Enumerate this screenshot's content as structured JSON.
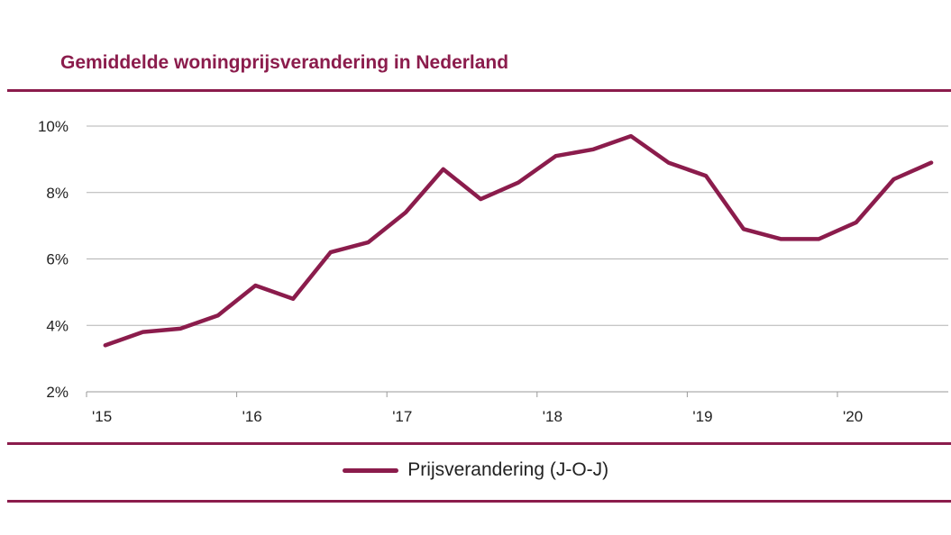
{
  "chart_data": {
    "type": "line",
    "title": "Gemiddelde woningprijsverandering in Nederland",
    "xlabel": "",
    "ylabel": "",
    "x_tick_labels": [
      "'15",
      "'16",
      "'17",
      "'18",
      "'19",
      "'20"
    ],
    "y_tick_labels": [
      "2%",
      "4%",
      "6%",
      "8%",
      "10%"
    ],
    "y_ticks": [
      2,
      4,
      6,
      8,
      10
    ],
    "ylim": [
      2,
      10
    ],
    "xlim": [
      2015,
      2021
    ],
    "grid": "horizontal",
    "legend_position": "bottom-center",
    "series": [
      {
        "name": "Prijsverandering (J-O-J)",
        "color": "#8b1c4c",
        "x": [
          2015.125,
          2015.375,
          2015.625,
          2015.875,
          2016.125,
          2016.375,
          2016.625,
          2016.875,
          2017.125,
          2017.375,
          2017.625,
          2017.875,
          2018.125,
          2018.375,
          2018.625,
          2018.875,
          2019.125,
          2019.375,
          2019.625,
          2019.875,
          2020.125,
          2020.375,
          2020.625
        ],
        "y": [
          3.4,
          3.8,
          3.9,
          4.3,
          5.2,
          4.8,
          6.2,
          6.5,
          7.4,
          8.7,
          7.8,
          8.3,
          9.1,
          9.3,
          9.7,
          8.9,
          8.5,
          6.9,
          6.6,
          6.6,
          7.1,
          8.4,
          8.9
        ]
      }
    ]
  }
}
